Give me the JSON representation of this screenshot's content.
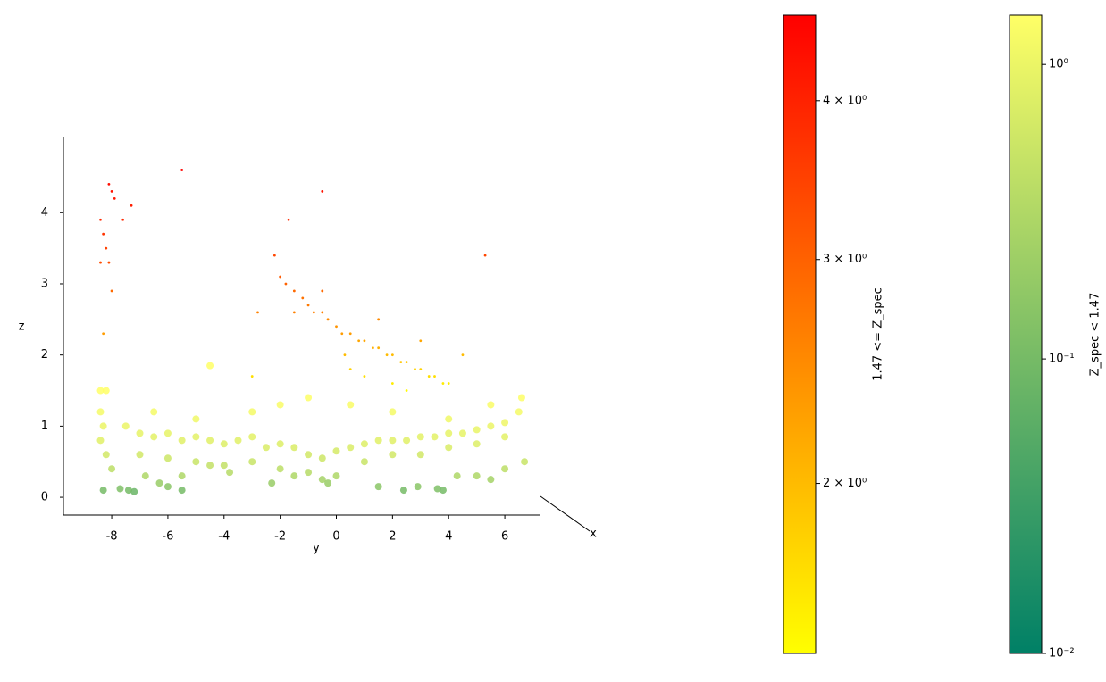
{
  "chart_data": {
    "type": "scatter",
    "xlabel": "y",
    "ylabel": "z",
    "zlabel": "x",
    "xlim": [
      -9.72,
      7.27
    ],
    "xticks": [
      -8,
      -6,
      -4,
      -2,
      0,
      2,
      4,
      6
    ],
    "ylim": [
      -0.25,
      5.07
    ],
    "yticks": [
      0,
      1,
      2,
      3,
      4
    ],
    "series": [
      {
        "x": [
          -8.4,
          -8.3,
          -8.1,
          -8.2,
          -8.0,
          -7.9,
          -7.6,
          -8.1,
          -7.3,
          -8.3,
          -8.0,
          -8.4,
          -5.5,
          -0.5,
          5.3,
          -1.7,
          -2.2,
          -2.0,
          -1.8,
          -1.5,
          -1.2,
          -1.0,
          -0.8,
          -0.5,
          -0.3,
          0,
          0.2,
          0.5,
          0.8,
          1,
          1.3,
          1.5,
          1.8,
          2,
          2.3,
          2.5,
          2.8,
          3,
          3.3,
          3.5,
          3.8,
          4,
          2,
          1,
          0.5,
          -0.5,
          -1.5,
          0.3,
          2.5,
          3,
          1.5,
          -2.8,
          4.5,
          -3
        ],
        "values": [
          3.9,
          3.7,
          3.3,
          3.5,
          4.3,
          4.2,
          3.9,
          4.4,
          4.1,
          2.3,
          2.9,
          3.3,
          4.6,
          4.3,
          3.4,
          3.9,
          3.4,
          3.1,
          3.0,
          2.9,
          2.8,
          2.7,
          2.6,
          2.6,
          2.5,
          2.4,
          2.3,
          2.3,
          2.2,
          2.2,
          2.1,
          2.1,
          2.0,
          2.0,
          1.9,
          1.9,
          1.8,
          1.8,
          1.7,
          1.7,
          1.6,
          1.6,
          1.6,
          1.7,
          1.8,
          2.9,
          2.6,
          2.0,
          1.5,
          2.2,
          2.5,
          2.6,
          2.0,
          1.7
        ]
      },
      {
        "x": [
          -8.4,
          -8.2,
          -8.4,
          -8.3,
          -8.4,
          -8.2,
          -8,
          -8.3,
          -7.7,
          -7.2,
          -7.4,
          -6.8,
          -6,
          -5.5,
          -4.5,
          -3.8,
          -7.5,
          -7,
          -6.5,
          -6,
          -5.5,
          -5,
          -4.5,
          -4,
          -3.5,
          -3,
          -2.5,
          -2,
          -1.5,
          -1,
          -0.5,
          0,
          0.5,
          1,
          1.5,
          2,
          2.5,
          3,
          3.5,
          4,
          4.5,
          5,
          5.5,
          6,
          6.5,
          6.6,
          -7,
          -6,
          -5,
          -4,
          -3,
          -2,
          -1,
          -0.5,
          0,
          1,
          2,
          3,
          4,
          5,
          6,
          -6.5,
          -5,
          -3,
          -1,
          0.5,
          2,
          4,
          5.5,
          -2,
          1.5,
          2.4,
          2.9,
          3.6,
          3.8,
          4.3,
          5,
          5.5,
          6,
          6.7,
          -0.3,
          -1.5,
          -2.3,
          -5.5,
          -6.3,
          -4.5
        ],
        "values": [
          1.5,
          1.5,
          1.2,
          1.0,
          0.8,
          0.6,
          0.4,
          0.1,
          0.12,
          0.08,
          0.1,
          0.3,
          0.15,
          0.1,
          1.85,
          0.35,
          1.0,
          0.9,
          0.85,
          0.9,
          0.8,
          0.85,
          0.8,
          0.75,
          0.8,
          0.85,
          0.7,
          0.75,
          0.7,
          0.6,
          0.55,
          0.65,
          0.7,
          0.75,
          0.8,
          0.8,
          0.8,
          0.85,
          0.85,
          0.9,
          0.9,
          0.95,
          1.0,
          1.05,
          1.2,
          1.4,
          0.6,
          0.55,
          0.5,
          0.45,
          0.5,
          0.4,
          0.35,
          0.25,
          0.3,
          0.5,
          0.6,
          0.6,
          0.7,
          0.75,
          0.85,
          1.2,
          1.1,
          1.2,
          1.4,
          1.3,
          1.2,
          1.1,
          1.3,
          1.3,
          0.15,
          0.1,
          0.15,
          0.12,
          0.1,
          0.3,
          0.3,
          0.25,
          0.4,
          0.5,
          0.2,
          0.3,
          0.2,
          0.3,
          0.2,
          0.45
        ]
      }
    ],
    "colorbars": [
      {
        "label": "1.47 <= Z_spec",
        "lim": [
          1.47,
          4.67
        ],
        "log": true,
        "colors": [
          "#ffff00",
          "#ff0000"
        ],
        "ticks": [
          {
            "value": 2,
            "label": "2 × 10⁰"
          },
          {
            "value": 3,
            "label": "3 × 10⁰"
          },
          {
            "value": 4,
            "label": "4 × 10⁰"
          }
        ]
      },
      {
        "label": "Z_spec < 1.47",
        "lim": [
          0.01,
          1.47
        ],
        "log": true,
        "colors": [
          "#008066",
          "#ffff66"
        ],
        "ticks": [
          {
            "value": 0.01,
            "label": "10⁻²"
          },
          {
            "value": 0.1,
            "label": "10⁻¹"
          },
          {
            "value": 1,
            "label": "10⁰"
          }
        ]
      }
    ]
  }
}
